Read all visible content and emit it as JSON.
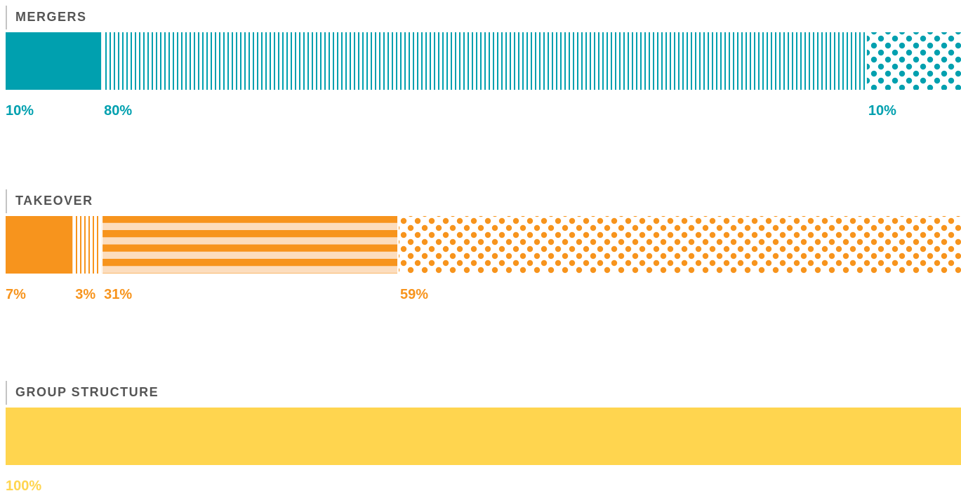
{
  "chart_data": {
    "type": "bar",
    "orientation": "horizontal-stacked",
    "value_unit": "%",
    "groups": [
      {
        "title": "MERGERS",
        "color": "#00A0AF",
        "light_color": "#CFEFF2",
        "segments": [
          {
            "value": 10,
            "label": "10%",
            "pattern": "solid"
          },
          {
            "value": 80,
            "label": "80%",
            "pattern": "vertical-stripes"
          },
          {
            "value": 10,
            "label": "10%",
            "pattern": "dots"
          }
        ]
      },
      {
        "title": "TAKEOVER",
        "color": "#F7941D",
        "light_color": "#FCDDBE",
        "segments": [
          {
            "value": 7,
            "label": "7%",
            "pattern": "solid"
          },
          {
            "value": 3,
            "label": "3%",
            "pattern": "vertical-stripes"
          },
          {
            "value": 31,
            "label": "31%",
            "pattern": "horizontal-stripes"
          },
          {
            "value": 59,
            "label": "59%",
            "pattern": "dots"
          }
        ]
      },
      {
        "title": "GROUP STRUCTURE",
        "color": "#FFD54F",
        "light_color": "#FFF1C4",
        "segments": [
          {
            "value": 100,
            "label": "100%",
            "pattern": "solid"
          }
        ]
      }
    ]
  }
}
